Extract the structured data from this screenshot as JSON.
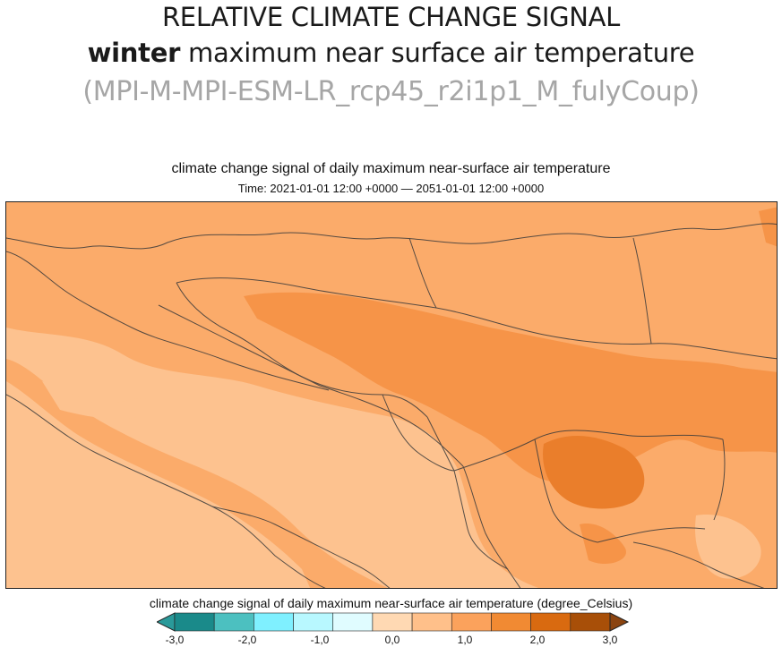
{
  "header": {
    "line1": "RELATIVE CLIMATE CHANGE SIGNAL",
    "line2_bold": "winter",
    "line2_rest": " maximum near surface air temperature",
    "line3": "(MPI-M-MPI-ESM-LR_rcp45_r2i1p1_M_fulyCoup)"
  },
  "plot": {
    "title": "climate change signal of daily maximum near-surface air temperature",
    "time": "Time: 2021-01-01 12:00 +0000 — 2051-01-01 12:00 +0000"
  },
  "colorbar": {
    "title": "climate change signal of daily maximum near-surface air temperature (degree_Celsius)",
    "ticks": [
      "-3,0",
      "-2,0",
      "-1,0",
      "0,0",
      "1,0",
      "2,0",
      "3,0"
    ],
    "colors": [
      "#1a8a8a",
      "#4cc0c0",
      "#7ff0ff",
      "#b8f8ff",
      "#e0fcff",
      "#ffd9b3",
      "#ffc08a",
      "#fba25c",
      "#f18a33",
      "#d96a10",
      "#a84f08"
    ],
    "below_color": "#2a9a9a",
    "above_color": "#8b4410"
  },
  "map": {
    "min_level": "0,0",
    "max_level": "2,0"
  }
}
